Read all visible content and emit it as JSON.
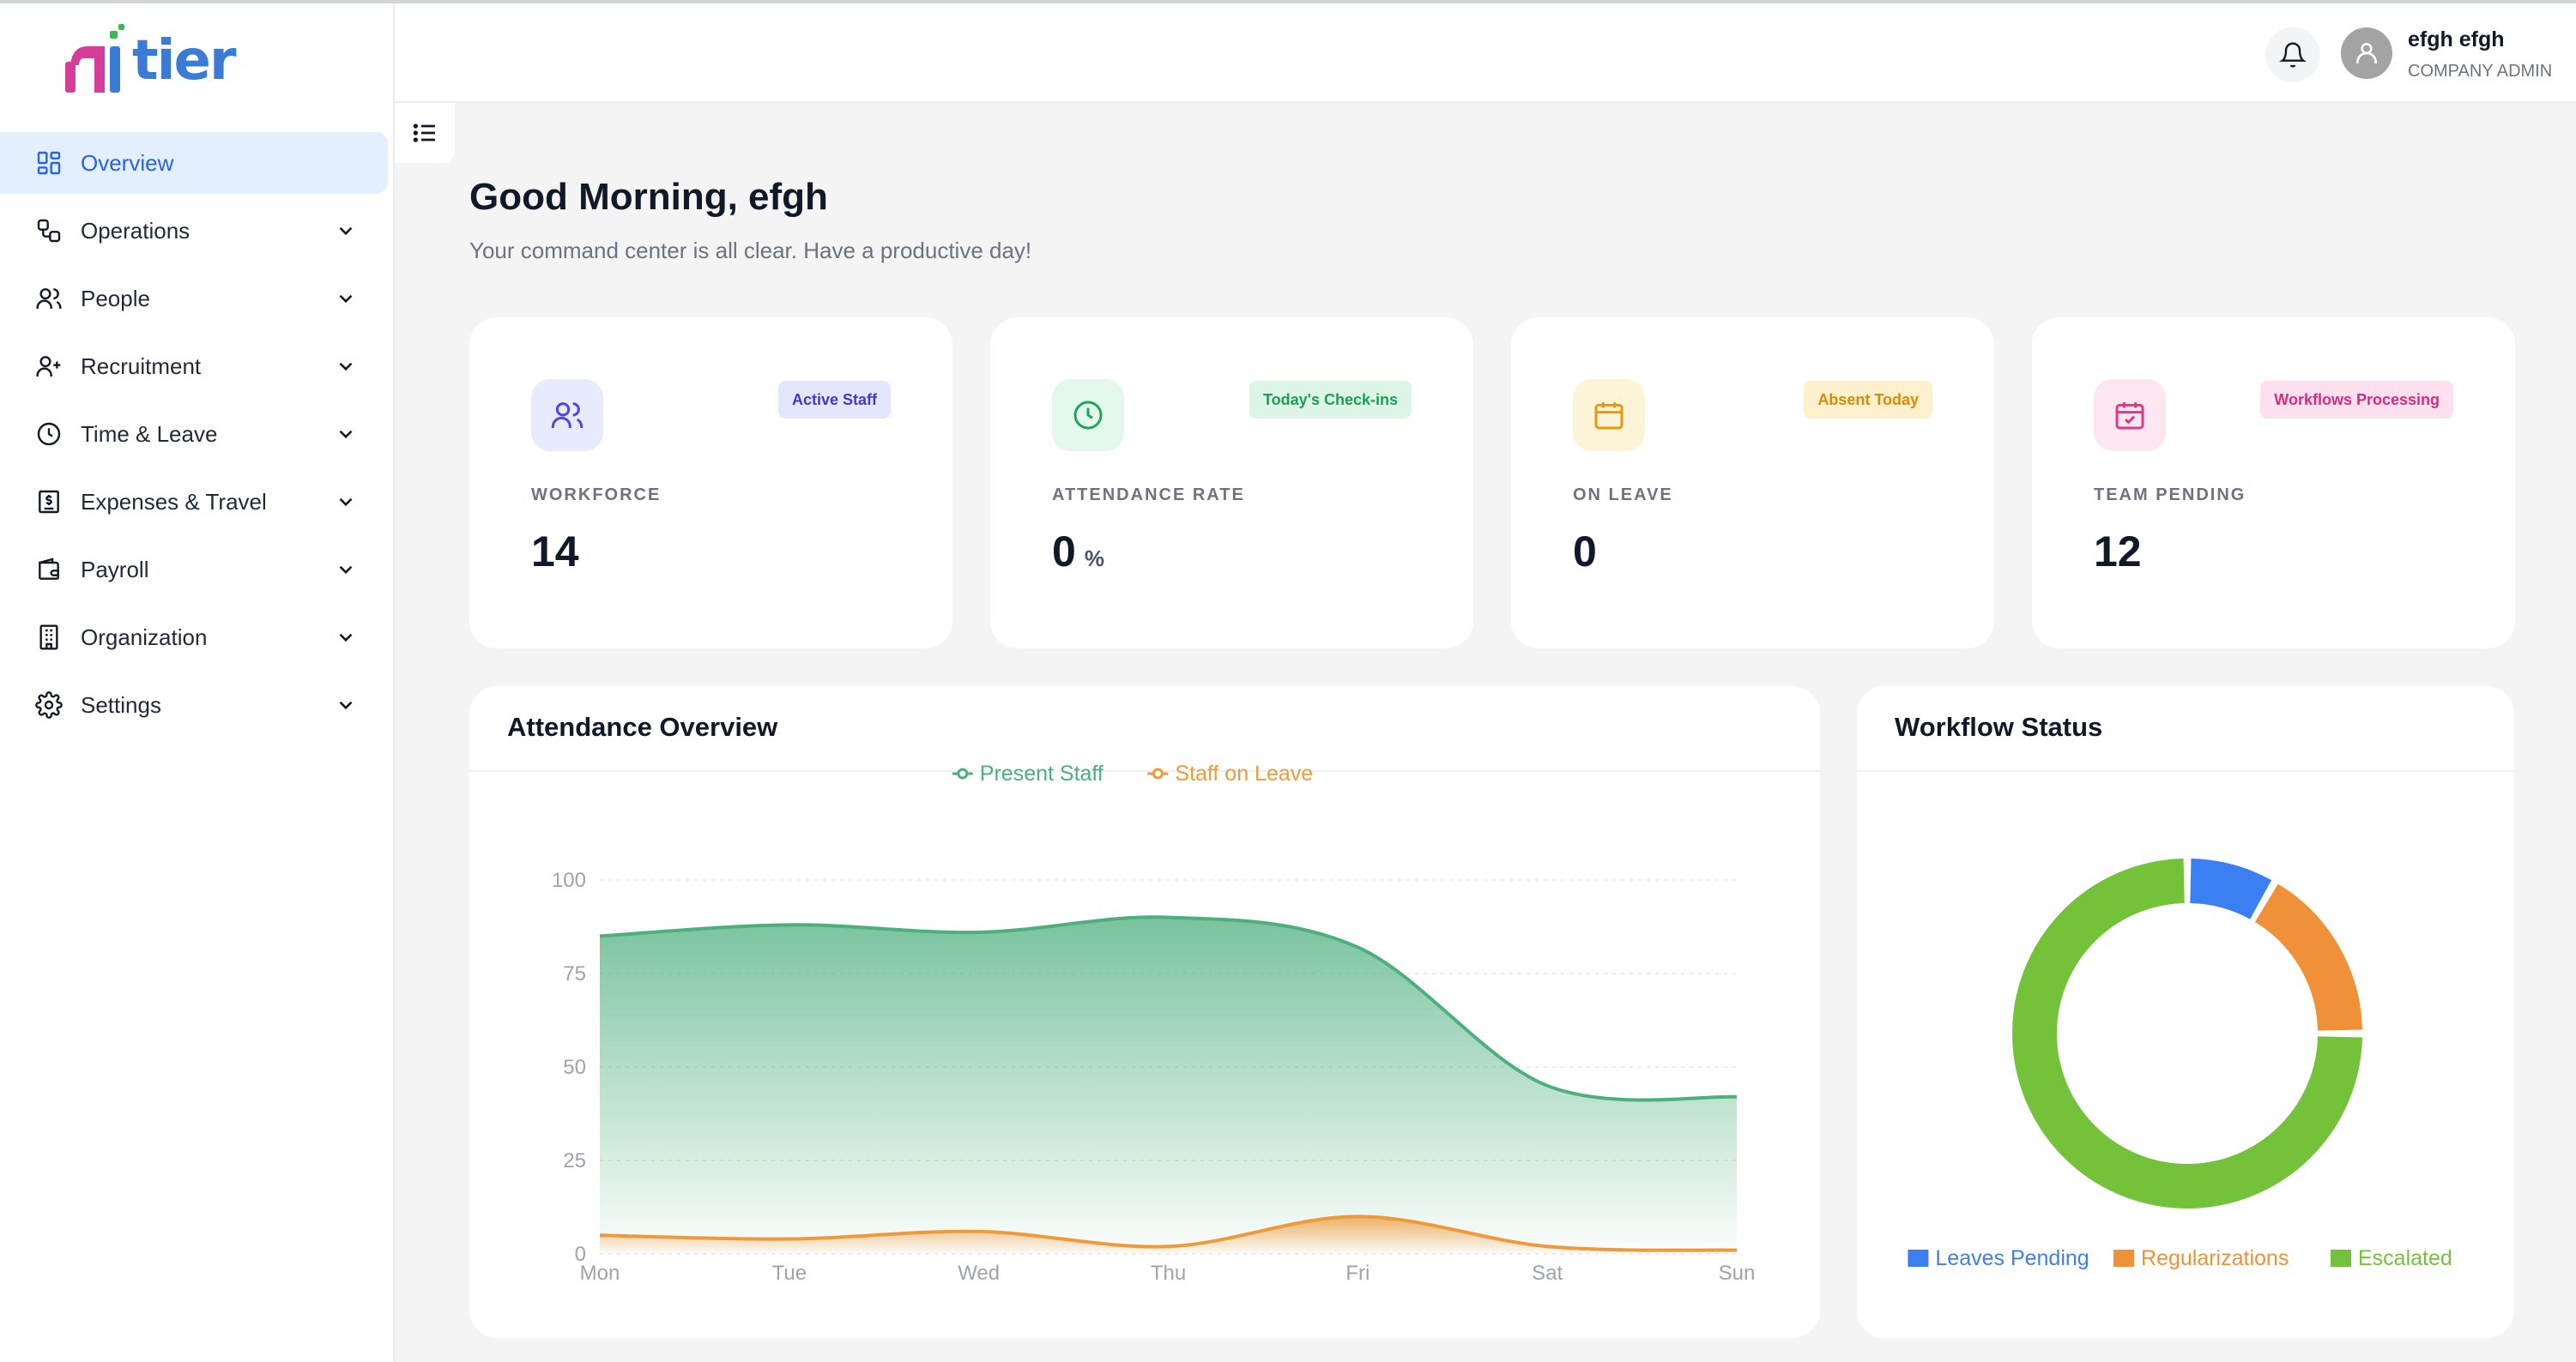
{
  "brand": {
    "name": "tier"
  },
  "sidebar": {
    "items": [
      {
        "label": "Overview",
        "icon": "grid-icon"
      },
      {
        "label": "Operations",
        "icon": "operations-icon"
      },
      {
        "label": "People",
        "icon": "people-icon"
      },
      {
        "label": "Recruitment",
        "icon": "user-plus-icon"
      },
      {
        "label": "Time & Leave",
        "icon": "clock-icon"
      },
      {
        "label": "Expenses & Travel",
        "icon": "receipt-icon"
      },
      {
        "label": "Payroll",
        "icon": "wallet-icon"
      },
      {
        "label": "Organization",
        "icon": "building-icon"
      },
      {
        "label": "Settings",
        "icon": "gear-icon"
      }
    ]
  },
  "header": {
    "user_name": "efgh efgh",
    "user_role": "COMPANY ADMIN"
  },
  "main": {
    "greeting": "Good Morning, efgh",
    "subgreeting": "Your command center is all clear. Have a productive day!"
  },
  "stats": [
    {
      "badge": "Active Staff",
      "label": "WORKFORCE",
      "value": "14",
      "unit": "",
      "color": "#4f46e5",
      "bg": "#e8ebfd"
    },
    {
      "badge": "Today's Check-ins",
      "label": "ATTENDANCE RATE",
      "value": "0",
      "unit": "%",
      "color": "#22a55b",
      "bg": "#e3f7eb"
    },
    {
      "badge": "Absent Today",
      "label": "ON LEAVE",
      "value": "0",
      "unit": "",
      "color": "#e59a0c",
      "bg": "#fdf3d7"
    },
    {
      "badge": "Workflows Processing",
      "label": "TEAM PENDING",
      "value": "12",
      "unit": "",
      "color": "#db3a8a",
      "bg": "#fce7f1"
    }
  ],
  "attendance": {
    "title": "Attendance Overview"
  },
  "workflow": {
    "title": "Workflow Status"
  },
  "chart_data": [
    {
      "type": "area",
      "title": "Attendance Overview",
      "categories": [
        "Mon",
        "Tue",
        "Wed",
        "Thu",
        "Fri",
        "Sat",
        "Sun"
      ],
      "yticks": [
        0,
        25,
        50,
        75,
        100
      ],
      "ylim": [
        0,
        100
      ],
      "legend_position": "top-center",
      "grid": true,
      "series": [
        {
          "name": "Present Staff",
          "values": [
            85,
            88,
            86,
            90,
            82,
            45,
            42
          ],
          "color": "#4caf7d"
        },
        {
          "name": "Staff on Leave",
          "values": [
            5,
            4,
            6,
            2,
            10,
            2,
            1
          ],
          "color": "#ef9a3a"
        }
      ]
    },
    {
      "type": "pie",
      "title": "Workflow Status",
      "legend_position": "bottom",
      "labels": [
        "Leaves Pending",
        "Regularizations",
        "Escalated"
      ],
      "values": [
        1,
        2,
        9
      ],
      "colors": [
        "#3b7ff2",
        "#f0913a",
        "#74c13a"
      ]
    }
  ]
}
